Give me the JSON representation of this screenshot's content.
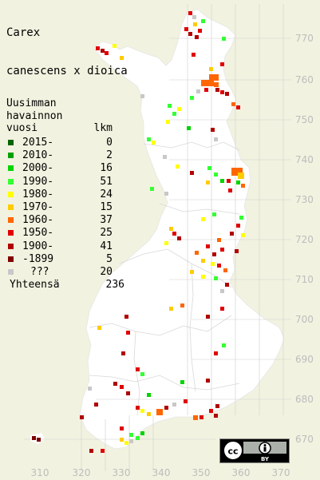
{
  "title": {
    "line1": "Carex",
    "line2": "canescens x dioica"
  },
  "legend": {
    "header": [
      "Uusimman",
      "havainnon",
      "vuosi"
    ],
    "count_header": "lkm",
    "rows": [
      {
        "label": "2015-",
        "count": "0",
        "color": "#006400"
      },
      {
        "label": "2010-",
        "count": "2",
        "color": "#00a000"
      },
      {
        "label": "2000-",
        "count": "16",
        "color": "#00d400"
      },
      {
        "label": "1990-",
        "count": "51",
        "color": "#33ff33"
      },
      {
        "label": "1980-",
        "count": "24",
        "color": "#ffff00"
      },
      {
        "label": "1970-",
        "count": "15",
        "color": "#ffcc00"
      },
      {
        "label": "1960-",
        "count": "37",
        "color": "#ff6600"
      },
      {
        "label": "1950-",
        "count": "25",
        "color": "#e00000"
      },
      {
        "label": "1900-",
        "count": "41",
        "color": "#b00000"
      },
      {
        "label": "-1899",
        "count": "5",
        "color": "#800000"
      },
      {
        "label": "???",
        "count": "20",
        "color": "#c8c8c8"
      }
    ],
    "total_label": "Yhteensä",
    "total_count": "236"
  },
  "axes": {
    "x_ticks": [
      "310",
      "320",
      "330",
      "340",
      "350",
      "360",
      "370"
    ],
    "y_ticks": [
      "770",
      "760",
      "750",
      "740",
      "730",
      "720",
      "710",
      "700",
      "690",
      "680",
      "670"
    ]
  },
  "license_badge": {
    "icon": "creative-commons-by-icon",
    "text": "BY"
  },
  "colors": {
    "background": "#f2f2e0",
    "land": "#ffffff",
    "grid": "#c8c8c8",
    "border": "#d9d9d9",
    "tick_text": "#c0c0c0"
  }
}
